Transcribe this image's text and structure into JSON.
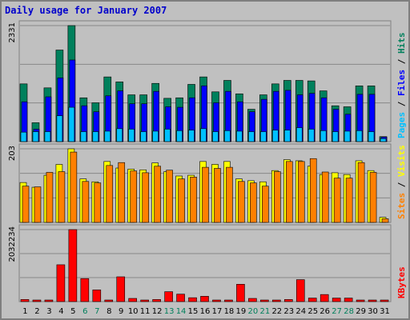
{
  "title": "Daily usage for January 2007",
  "colors": {
    "hits": "#00805c",
    "files": "#0000ff",
    "pages": "#00c0ff",
    "visits": "#ffff00",
    "sites": "#ff8000",
    "kbytes": "#ff0000",
    "weekend_day": "#00805c",
    "weekday_day": "#000000",
    "title": "#0000cc"
  },
  "chart_data": [
    {
      "type": "bar",
      "panel": "top",
      "y_max_label": "2331",
      "ylim": [
        0,
        2331
      ],
      "grid": true,
      "right_label": [
        {
          "text": "Pages",
          "color": "#00c0ff"
        },
        {
          "text": " / ",
          "color": "#000000"
        },
        {
          "text": "Files",
          "color": "#0000ff"
        },
        {
          "text": " / ",
          "color": "#000000"
        },
        {
          "text": "Hits",
          "color": "#00805c"
        }
      ],
      "categories": [
        "1",
        "2",
        "3",
        "4",
        "5",
        "6",
        "7",
        "8",
        "9",
        "10",
        "11",
        "12",
        "13",
        "14",
        "15",
        "16",
        "17",
        "18",
        "19",
        "20",
        "21",
        "22",
        "23",
        "24",
        "25",
        "26",
        "27",
        "28",
        "29",
        "30",
        "31"
      ],
      "series": [
        {
          "name": "Hits",
          "values": [
            1160,
            380,
            1080,
            1840,
            2331,
            880,
            780,
            1300,
            1200,
            940,
            940,
            1170,
            870,
            880,
            1150,
            1300,
            1000,
            1230,
            960,
            650,
            940,
            1160,
            1230,
            1230,
            1220,
            1020,
            720,
            700,
            1120,
            1120,
            100
          ]
        },
        {
          "name": "Files",
          "values": [
            800,
            250,
            900,
            1280,
            1640,
            720,
            600,
            920,
            1020,
            760,
            760,
            1010,
            700,
            690,
            880,
            1120,
            780,
            1010,
            800,
            600,
            850,
            1010,
            1030,
            940,
            970,
            880,
            650,
            550,
            950,
            950,
            90
          ]
        },
        {
          "name": "Pages",
          "values": [
            190,
            200,
            200,
            520,
            690,
            200,
            200,
            210,
            260,
            250,
            200,
            210,
            250,
            220,
            230,
            260,
            200,
            220,
            210,
            200,
            200,
            230,
            230,
            280,
            250,
            220,
            200,
            210,
            220,
            200,
            60
          ]
        }
      ]
    },
    {
      "type": "bar",
      "panel": "middle",
      "y_max_label": "203",
      "ylim": [
        0,
        203
      ],
      "grid": true,
      "right_label": [
        {
          "text": "Sites",
          "color": "#ff8000"
        },
        {
          "text": " / ",
          "color": "#000000"
        },
        {
          "text": "Visits",
          "color": "#ffff00"
        }
      ],
      "categories": [
        "1",
        "2",
        "3",
        "4",
        "5",
        "6",
        "7",
        "8",
        "9",
        "10",
        "11",
        "12",
        "13",
        "14",
        "15",
        "16",
        "17",
        "18",
        "19",
        "20",
        "21",
        "22",
        "23",
        "24",
        "25",
        "26",
        "27",
        "28",
        "29",
        "30",
        "31"
      ],
      "series": [
        {
          "name": "Visits",
          "values": [
            110,
            97,
            130,
            160,
            203,
            120,
            112,
            168,
            150,
            147,
            145,
            164,
            140,
            128,
            130,
            168,
            160,
            168,
            120,
            115,
            112,
            143,
            173,
            170,
            155,
            132,
            137,
            132,
            170,
            143,
            14
          ]
        },
        {
          "name": "Sites",
          "values": [
            100,
            98,
            138,
            140,
            194,
            113,
            109,
            157,
            165,
            142,
            137,
            155,
            144,
            120,
            125,
            152,
            149,
            152,
            113,
            109,
            100,
            140,
            168,
            168,
            176,
            139,
            122,
            122,
            165,
            138,
            10
          ]
        }
      ]
    },
    {
      "type": "bar",
      "panel": "bottom",
      "y_max_label": "2032234",
      "ylim": [
        0,
        2032234
      ],
      "grid": true,
      "right_label": [
        {
          "text": "KBytes",
          "color": "#ff0000"
        }
      ],
      "categories": [
        "1",
        "2",
        "3",
        "4",
        "5",
        "6",
        "7",
        "8",
        "9",
        "10",
        "11",
        "12",
        "13",
        "14",
        "15",
        "16",
        "17",
        "18",
        "19",
        "20",
        "21",
        "22",
        "23",
        "24",
        "25",
        "26",
        "27",
        "28",
        "29",
        "30",
        "31"
      ],
      "series": [
        {
          "name": "KBytes",
          "values": [
            60000,
            20000,
            20000,
            1040000,
            2032234,
            650000,
            330000,
            40000,
            700000,
            90000,
            30000,
            60000,
            280000,
            210000,
            110000,
            150000,
            40000,
            40000,
            490000,
            90000,
            30000,
            30000,
            60000,
            620000,
            100000,
            200000,
            100000,
            100000,
            40000,
            40000,
            20000
          ]
        }
      ]
    }
  ]
}
